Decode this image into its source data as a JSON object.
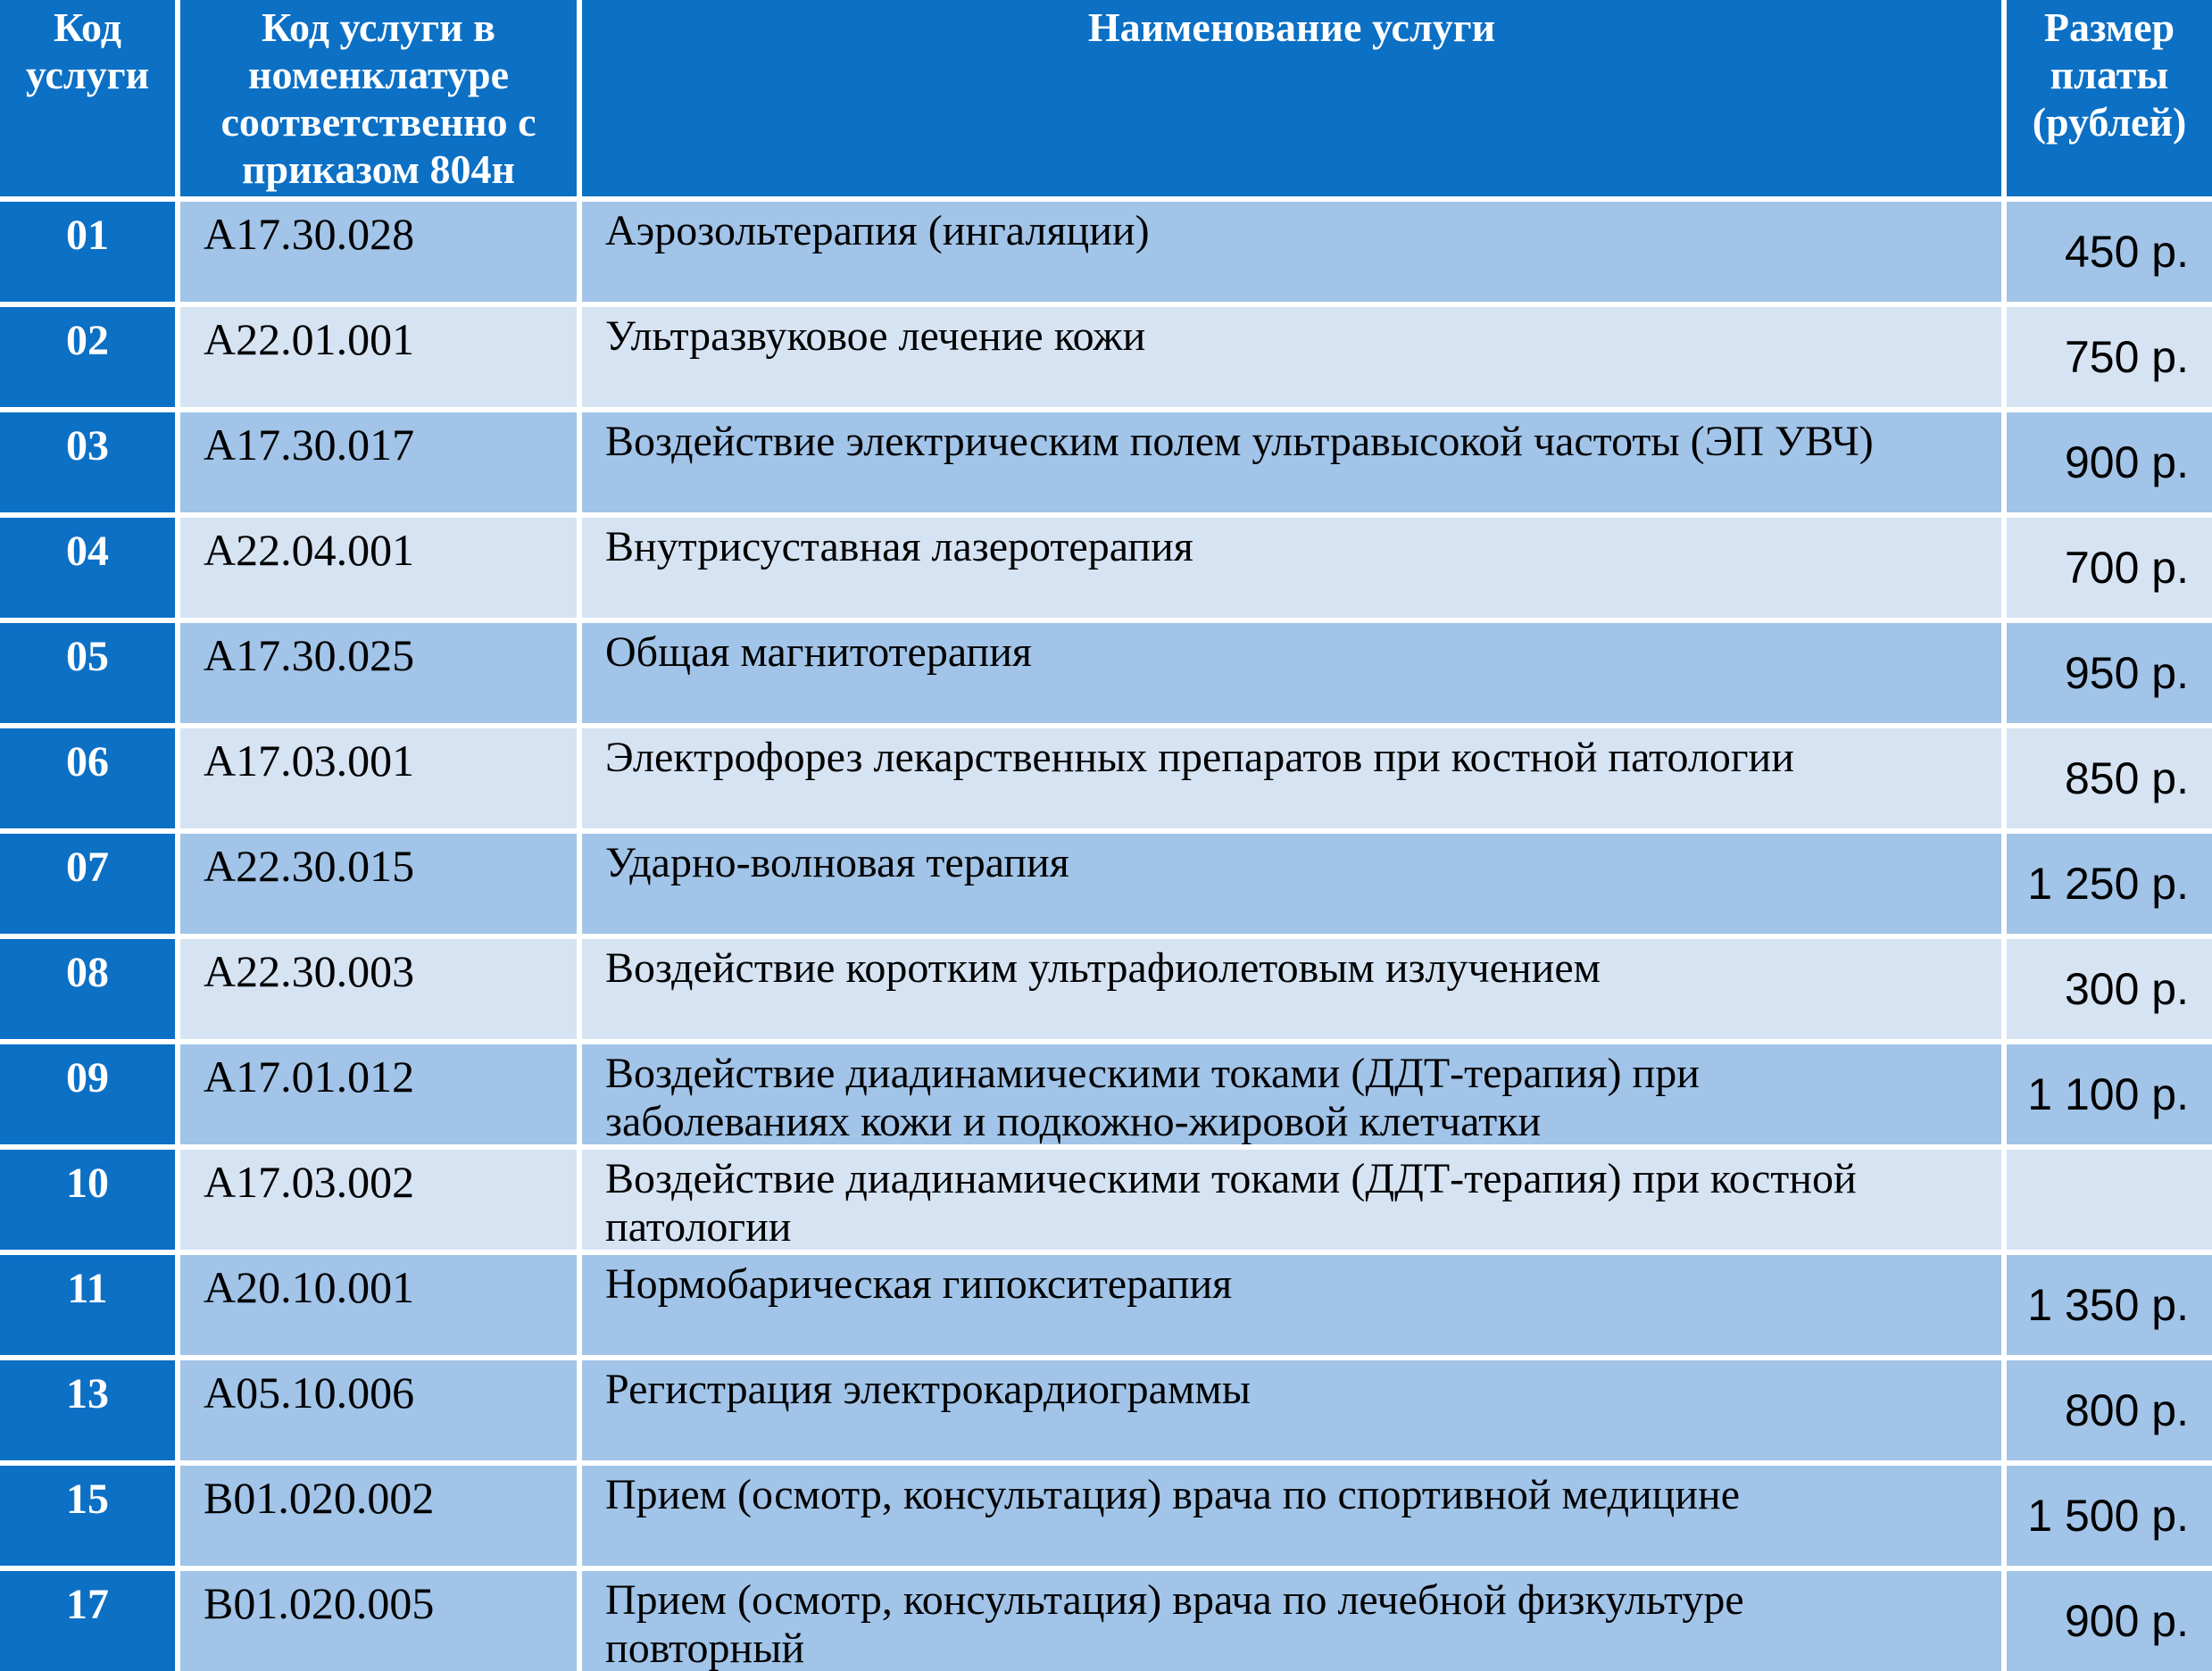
{
  "colors": {
    "header_bg": "#0c70c5",
    "row_medium": "#a1c4e8",
    "row_light": "#d6e3f3",
    "grid_line": "#ffffff",
    "body_text": "#000000",
    "header_text": "#ffffff"
  },
  "table": {
    "headers": [
      "Код\nуслуги",
      "Код услуги в\nноменклатуре\nсоответственно с\nприказом 804н",
      "Наименование услуги",
      "Размер\nплаты\n(рублей)"
    ],
    "rows": [
      {
        "code": "01",
        "nomenclature_code": "A17.30.028",
        "name": "Аэрозольтерапия (ингаляции)",
        "price": "450 р.",
        "shade": "medium"
      },
      {
        "code": "02",
        "nomenclature_code": "A22.01.001",
        "name": "Ультразвуковое лечение кожи",
        "price": "750 р.",
        "shade": "light"
      },
      {
        "code": "03",
        "nomenclature_code": "A17.30.017",
        "name": "Воздействие электрическим полем ультравысокой частоты (ЭП УВЧ)",
        "price": "900 р.",
        "shade": "medium"
      },
      {
        "code": "04",
        "nomenclature_code": "A22.04.001",
        "name": "Внутрисуставная лазеротерапия",
        "price": "700 р.",
        "shade": "light"
      },
      {
        "code": "05",
        "nomenclature_code": "A17.30.025",
        "name": "Общая магнитотерапия",
        "price": "950 р.",
        "shade": "medium"
      },
      {
        "code": "06",
        "nomenclature_code": "A17.03.001",
        "name": "Электрофорез лекарственных препаратов при костной патологии",
        "price": "850 р.",
        "shade": "light"
      },
      {
        "code": "07",
        "nomenclature_code": "A22.30.015",
        "name": "Ударно-волновая терапия",
        "price": "1 250 р.",
        "shade": "medium"
      },
      {
        "code": "08",
        "nomenclature_code": "A22.30.003",
        "name": "Воздействие коротким ультрафиолетовым излучением",
        "price": "300 р.",
        "shade": "light"
      },
      {
        "code": "09",
        "nomenclature_code": "A17.01.012",
        "name": "Воздействие диадинамическими токами (ДДТ-терапия) при\nзаболеваниях кожи и подкожно-жировой клетчатки",
        "price": "1 100 р.",
        "shade": "medium"
      },
      {
        "code": "10",
        "nomenclature_code": "A17.03.002",
        "name": "Воздействие диадинамическими токами (ДДТ-терапия) при костной\nпатологии",
        "price": "",
        "shade": "light"
      },
      {
        "code": "11",
        "nomenclature_code": "A20.10.001",
        "name": "Нормобарическая гипокситерапия",
        "price": "1 350 р.",
        "shade": "medium"
      },
      {
        "code": "13",
        "nomenclature_code": "A05.10.006",
        "name": "Регистрация электрокардиограммы",
        "price": "800 р.",
        "shade": "medium"
      },
      {
        "code": "15",
        "nomenclature_code": "B01.020.002",
        "name": "Прием (осмотр, консультация) врача по спортивной медицине",
        "price": "1 500 р.",
        "shade": "medium"
      },
      {
        "code": "17",
        "nomenclature_code": "B01.020.005",
        "name": "Прием (осмотр, консультация) врача по лечебной физкультуре\nповторный",
        "price": "900 р.",
        "shade": "medium"
      }
    ]
  }
}
